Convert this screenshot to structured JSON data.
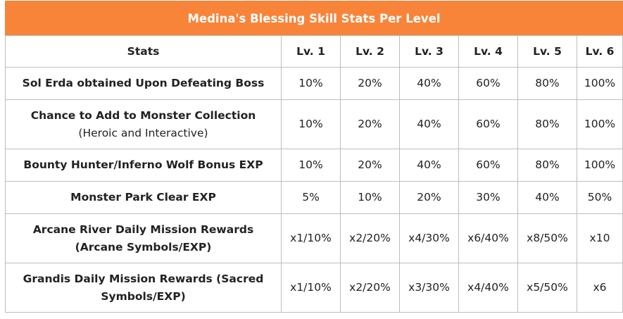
{
  "table": {
    "title": "Medina's Blessing Skill Stats Per Level",
    "headers": [
      "Stats",
      "Lv. 1",
      "Lv. 2",
      "Lv. 3",
      "Lv. 4",
      "Lv. 5",
      "Lv. 6"
    ],
    "rows": [
      {
        "stat": "Sol Erda obtained Upon Defeating Boss",
        "stat_note": "",
        "values": [
          "10%",
          "20%",
          "40%",
          "60%",
          "80%",
          "100%"
        ]
      },
      {
        "stat": "Chance to Add to Monster Collection",
        "stat_note": " (Heroic and Interactive)",
        "values": [
          "10%",
          "20%",
          "40%",
          "60%",
          "80%",
          "100%"
        ]
      },
      {
        "stat": "Bounty Hunter/Inferno Wolf Bonus EXP",
        "stat_note": "",
        "values": [
          "10%",
          "20%",
          "40%",
          "60%",
          "80%",
          "100%"
        ]
      },
      {
        "stat": "Monster Park Clear EXP",
        "stat_note": "",
        "values": [
          "5%",
          "10%",
          "20%",
          "30%",
          "40%",
          "50%"
        ]
      },
      {
        "stat": "Arcane River Daily Mission Rewards (Arcane Symbols/EXP)",
        "stat_note": "",
        "values": [
          "x1/10%",
          "x2/20%",
          "x4/30%",
          "x6/40%",
          "x8/50%",
          "x10"
        ]
      },
      {
        "stat": "Grandis Daily Mission Rewards (Sacred Symbols/EXP)",
        "stat_note": "",
        "values": [
          "x1/10%",
          "x2/20%",
          "x3/30%",
          "x4/40%",
          "x5/50%",
          "x6"
        ]
      }
    ]
  },
  "colors": {
    "header_bg": "#f8843a",
    "header_text": "#ffffff",
    "border": "#bdbdbd"
  }
}
